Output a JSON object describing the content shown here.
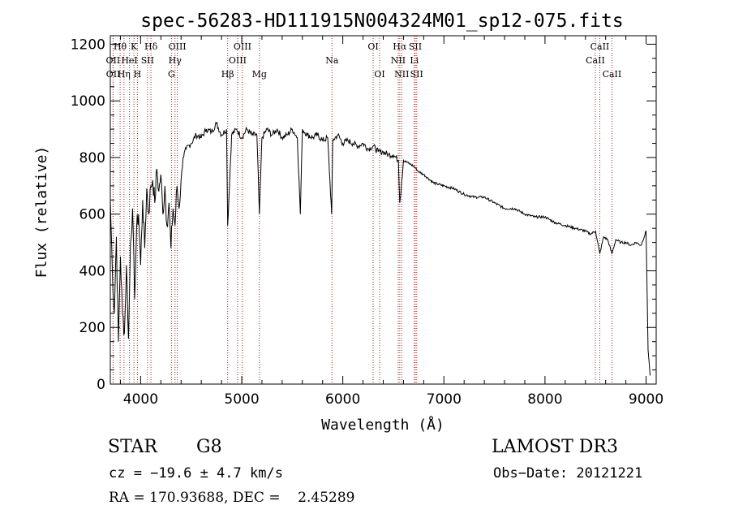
{
  "chart_data": {
    "type": "line",
    "title": "spec-56283-HD111915N004324M01_sp12-075.fits",
    "xlabel": "Wavelength (Å)",
    "ylabel": "Flux (relative)",
    "xlim": [
      3700,
      9100
    ],
    "ylim": [
      0,
      1230
    ],
    "x_ticks": [
      4000,
      5000,
      6000,
      7000,
      8000,
      9000
    ],
    "y_ticks": [
      0,
      200,
      400,
      600,
      800,
      1000,
      1200
    ],
    "grid": false,
    "series": [
      {
        "name": "spectrum",
        "x": [
          3700,
          3720,
          3740,
          3760,
          3780,
          3800,
          3820,
          3840,
          3860,
          3880,
          3900,
          3920,
          3940,
          3960,
          3980,
          4000,
          4020,
          4040,
          4060,
          4080,
          4100,
          4120,
          4140,
          4160,
          4180,
          4200,
          4220,
          4240,
          4260,
          4280,
          4300,
          4320,
          4340,
          4360,
          4380,
          4400,
          4420,
          4450,
          4500,
          4550,
          4600,
          4650,
          4700,
          4750,
          4800,
          4850,
          4861,
          4900,
          4950,
          5000,
          5050,
          5100,
          5150,
          5175,
          5200,
          5250,
          5300,
          5350,
          5400,
          5450,
          5500,
          5550,
          5580,
          5600,
          5650,
          5700,
          5750,
          5800,
          5850,
          5890,
          5900,
          5950,
          6000,
          6050,
          6100,
          6150,
          6200,
          6250,
          6300,
          6350,
          6400,
          6450,
          6500,
          6550,
          6563,
          6600,
          6650,
          6700,
          6750,
          6800,
          6900,
          7000,
          7100,
          7200,
          7300,
          7400,
          7500,
          7600,
          7700,
          7800,
          7900,
          8000,
          8100,
          8200,
          8300,
          8400,
          8450,
          8500,
          8542,
          8580,
          8620,
          8662,
          8700,
          8750,
          8800,
          8850,
          8900,
          8950,
          9000,
          9020,
          9040
        ],
        "y": [
          650,
          400,
          250,
          520,
          150,
          450,
          250,
          180,
          420,
          160,
          500,
          620,
          300,
          550,
          600,
          420,
          650,
          480,
          690,
          600,
          700,
          720,
          640,
          760,
          680,
          740,
          600,
          700,
          560,
          640,
          480,
          620,
          560,
          700,
          620,
          720,
          800,
          830,
          850,
          880,
          870,
          900,
          890,
          920,
          880,
          900,
          560,
          880,
          900,
          870,
          900,
          880,
          880,
          600,
          870,
          900,
          880,
          900,
          870,
          880,
          900,
          870,
          600,
          900,
          880,
          870,
          880,
          860,
          870,
          600,
          860,
          880,
          850,
          860,
          850,
          840,
          850,
          830,
          840,
          820,
          820,
          810,
          810,
          790,
          640,
          790,
          780,
          770,
          750,
          740,
          710,
          700,
          690,
          670,
          660,
          660,
          640,
          620,
          620,
          600,
          590,
          590,
          570,
          560,
          550,
          540,
          530,
          540,
          460,
          520,
          510,
          460,
          510,
          500,
          500,
          490,
          500,
          490,
          540,
          120,
          30
        ]
      }
    ],
    "lines": [
      {
        "label": "Hθ",
        "wl": 3797,
        "row": 1
      },
      {
        "label": "OII",
        "wl": 3727,
        "row": 2
      },
      {
        "label": "OII",
        "wl": 3729,
        "row": 3
      },
      {
        "label": "K",
        "wl": 3934,
        "row": 1
      },
      {
        "label": "HeI",
        "wl": 3889,
        "row": 2
      },
      {
        "label": "Hη",
        "wl": 3835,
        "row": 3
      },
      {
        "label": "H",
        "wl": 3968,
        "row": 3
      },
      {
        "label": "SII",
        "wl": 4068,
        "row": 2
      },
      {
        "label": "Hδ",
        "wl": 4102,
        "row": 1
      },
      {
        "label": "OIII",
        "wl": 4363,
        "row": 1
      },
      {
        "label": "Hγ",
        "wl": 4340,
        "row": 2
      },
      {
        "label": "G",
        "wl": 4305,
        "row": 3
      },
      {
        "label": "Hβ",
        "wl": 4861,
        "row": 3
      },
      {
        "label": "OIII",
        "wl": 4959,
        "row": 2
      },
      {
        "label": "OIII",
        "wl": 5007,
        "row": 1
      },
      {
        "label": "Mg",
        "wl": 5175,
        "row": 3
      },
      {
        "label": "Na",
        "wl": 5893,
        "row": 2
      },
      {
        "label": "OI",
        "wl": 6300,
        "row": 1
      },
      {
        "label": "OI",
        "wl": 6364,
        "row": 3
      },
      {
        "label": "Hα",
        "wl": 6563,
        "row": 1
      },
      {
        "label": "NII",
        "wl": 6548,
        "row": 2
      },
      {
        "label": "NII",
        "wl": 6583,
        "row": 3
      },
      {
        "label": "SII",
        "wl": 6717,
        "row": 1
      },
      {
        "label": "Li",
        "wl": 6707,
        "row": 2
      },
      {
        "label": "SII",
        "wl": 6731,
        "row": 3
      },
      {
        "label": "CaII",
        "wl": 8542,
        "row": 1
      },
      {
        "label": "CaII",
        "wl": 8498,
        "row": 2
      },
      {
        "label": "CaII",
        "wl": 8662,
        "row": 3
      }
    ]
  },
  "info": {
    "object_class": "STAR",
    "subclass": "G8",
    "survey": "LAMOST DR3",
    "cz": "cz = −19.6 ± 4.7 km/s",
    "obs_date": "Obs−Date: 20121221",
    "coords": "RA = 170.93688, DEC =    2.45289"
  },
  "colors": {
    "line_marker": "#b22222",
    "spectrum": "#000000",
    "axes": "#000000"
  }
}
